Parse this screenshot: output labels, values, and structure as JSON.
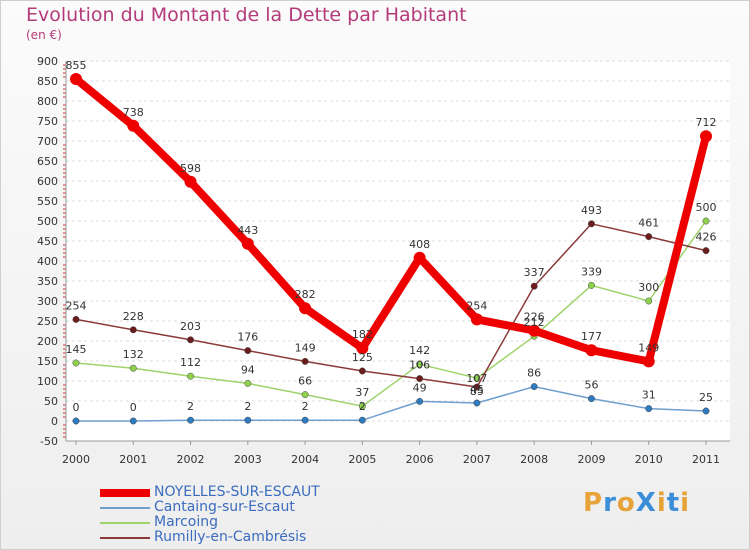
{
  "header": {
    "title": "Evolution du Montant de la Dette par Habitant",
    "subtitle": "(en €)"
  },
  "logo": {
    "text": "ProXiti",
    "letters": [
      "P",
      "r",
      "o",
      "X",
      "i",
      "t",
      "i"
    ],
    "colors": [
      "#e8a23a",
      "#3c8ed8",
      "#e8a23a",
      "#3c8ed8",
      "#e8a23a",
      "#3c8ed8",
      "#e8a23a"
    ]
  },
  "chart_data": {
    "type": "line",
    "title": "Evolution du Montant de la Dette par Habitant",
    "ylabel": "(en €)",
    "xlabel": "",
    "categories": [
      "2000",
      "2001",
      "2002",
      "2003",
      "2004",
      "2005",
      "2006",
      "2007",
      "2008",
      "2009",
      "2010",
      "2011"
    ],
    "ylim": [
      -50,
      900
    ],
    "yticks": [
      -50,
      0,
      50,
      100,
      150,
      200,
      250,
      300,
      350,
      400,
      450,
      500,
      550,
      600,
      650,
      700,
      750,
      800,
      850,
      900
    ],
    "grid": "horizontal",
    "legend_position": "bottom-left",
    "series": [
      {
        "name": "NOYELLES-SUR-ESCAUT",
        "color": "#ee0000",
        "marker": "#ee0000",
        "weight": "heavy",
        "values": [
          855,
          738,
          598,
          443,
          282,
          182,
          408,
          254,
          226,
          177,
          149,
          712
        ],
        "labels": [
          "855",
          "738",
          "598",
          "443",
          "282",
          "182",
          "408",
          "254",
          "226",
          "177",
          "149",
          "712"
        ]
      },
      {
        "name": "Cantaing-sur-Escaut",
        "color": "#6e9fcf",
        "marker": "#2f7bbf",
        "weight": "thin",
        "values": [
          0,
          0,
          2,
          2,
          2,
          2,
          49,
          45,
          86,
          56,
          31,
          25
        ],
        "labels": [
          "0",
          "0",
          "2",
          "2",
          "2",
          "2",
          "49",
          "45",
          "86",
          "56",
          "31",
          "25"
        ]
      },
      {
        "name": "Marcoing",
        "color": "#9ed36a",
        "marker": "#8fd14f",
        "weight": "thin",
        "values": [
          145,
          132,
          112,
          94,
          66,
          37,
          142,
          107,
          212,
          339,
          300,
          500
        ],
        "labels": [
          "145",
          "132",
          "112",
          "94",
          "66",
          "37",
          "142",
          "107",
          "212",
          "339",
          "300",
          "500"
        ]
      },
      {
        "name": "Rumilly-en-Cambrésis",
        "color": "#8b3a3a",
        "marker": "#6b1d1d",
        "weight": "thin",
        "values": [
          254,
          228,
          203,
          176,
          149,
          125,
          106,
          85,
          337,
          493,
          461,
          426
        ],
        "labels": [
          "254",
          "228",
          "203",
          "176",
          "149",
          "125",
          "106",
          "85",
          "337",
          "493",
          "461",
          "426"
        ]
      }
    ]
  }
}
